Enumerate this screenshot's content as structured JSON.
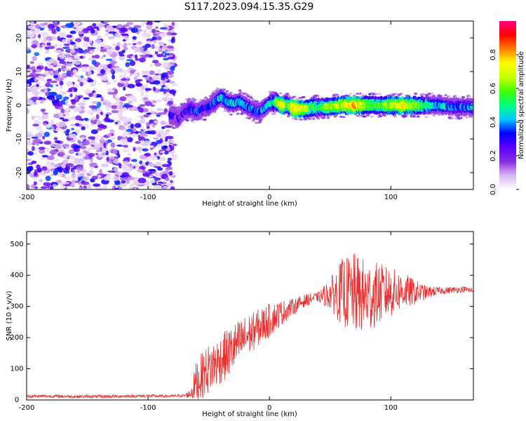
{
  "title": "S117.2023.094.15.35.G29",
  "colors": {
    "axis": "#000000",
    "snr_line": "#e83030",
    "background": "#ffffff"
  },
  "chart_data": [
    {
      "type": "heatmap",
      "name": "spectrogram",
      "xlabel": "Height of straight line (km)",
      "ylabel": "Frequency (Hz)",
      "xlim": [
        -200,
        168
      ],
      "ylim": [
        -25,
        25
      ],
      "xticks": [
        -200,
        -100,
        0,
        100
      ],
      "yticks": [
        -20,
        -10,
        0,
        10,
        20
      ],
      "colorbar": {
        "label": "Normalized spectral amplitude",
        "range": [
          0,
          1
        ],
        "ticks": [
          0.0,
          0.2,
          0.4,
          0.6,
          0.8
        ],
        "tick_labels": [
          "0.0",
          "0.2",
          "0.4",
          "0.6",
          "0.8"
        ],
        "colormap": [
          "#ffffff",
          "#d8b8f0",
          "#8a2be2",
          "#5a00ff",
          "#0000ff",
          "#00c8ff",
          "#00ff80",
          "#40ff00",
          "#c8ff00",
          "#ffff00",
          "#ff8000",
          "#ff0000",
          "#ff0080"
        ]
      },
      "noise_region_x": [
        -200,
        -78
      ],
      "signal_start_x": -82,
      "signal_track": {
        "x": [
          -82,
          -75,
          -70,
          -65,
          -60,
          -55,
          -50,
          -45,
          -40,
          -35,
          -30,
          -25,
          -20,
          -15,
          -10,
          -5,
          0,
          5,
          10,
          15,
          20,
          30,
          40,
          50,
          60,
          70,
          80,
          90,
          100,
          110,
          120,
          130,
          140,
          150,
          160,
          168
        ],
        "freq": [
          -3,
          -4,
          -2,
          -1,
          -2,
          -1,
          -0.5,
          1,
          2.5,
          1,
          0.5,
          1,
          0,
          -1,
          -2,
          -1,
          0.5,
          1,
          0,
          0,
          -1,
          -1,
          -0.5,
          -0.5,
          0,
          0,
          0,
          0,
          0,
          0,
          0,
          0,
          0,
          -0.5,
          -0.5,
          -0.5
        ],
        "amplitude": [
          0.35,
          0.3,
          0.3,
          0.4,
          0.4,
          0.35,
          0.4,
          0.45,
          0.5,
          0.45,
          0.5,
          0.5,
          0.45,
          0.4,
          0.4,
          0.45,
          0.5,
          0.6,
          0.85,
          0.6,
          0.9,
          0.7,
          0.6,
          0.7,
          0.75,
          0.85,
          0.7,
          0.6,
          0.75,
          0.8,
          0.7,
          0.55,
          0.5,
          0.45,
          0.45,
          0.45
        ]
      }
    },
    {
      "type": "line",
      "name": "snr",
      "xlabel": "Height of straight line (km)",
      "ylabel": "SNR (10 * v/v)",
      "xlim": [
        -200,
        168
      ],
      "ylim": [
        0,
        540
      ],
      "xticks": [
        -200,
        -100,
        0,
        100
      ],
      "yticks": [
        0,
        100,
        200,
        300,
        400,
        500
      ],
      "series": [
        {
          "x": [
            -200,
            -180,
            -160,
            -140,
            -120,
            -100,
            -90,
            -80,
            -70,
            -65,
            -60,
            -50,
            -40,
            -30,
            -20,
            -10,
            0,
            10,
            20,
            30,
            40,
            50,
            60,
            70,
            80,
            90,
            100,
            110,
            120,
            130,
            140,
            150,
            160,
            168
          ],
          "mean": [
            12,
            12,
            11,
            11,
            12,
            13,
            12,
            12,
            14,
            20,
            60,
            100,
            130,
            165,
            200,
            230,
            255,
            280,
            300,
            320,
            330,
            340,
            345,
            340,
            330,
            340,
            345,
            350,
            345,
            345,
            350,
            352,
            355,
            350
          ],
          "spread": [
            5,
            5,
            5,
            5,
            5,
            5,
            5,
            5,
            5,
            15,
            70,
            80,
            80,
            80,
            70,
            60,
            55,
            40,
            25,
            20,
            15,
            50,
            110,
            130,
            120,
            100,
            80,
            60,
            40,
            20,
            12,
            10,
            10,
            10
          ]
        }
      ]
    }
  ]
}
